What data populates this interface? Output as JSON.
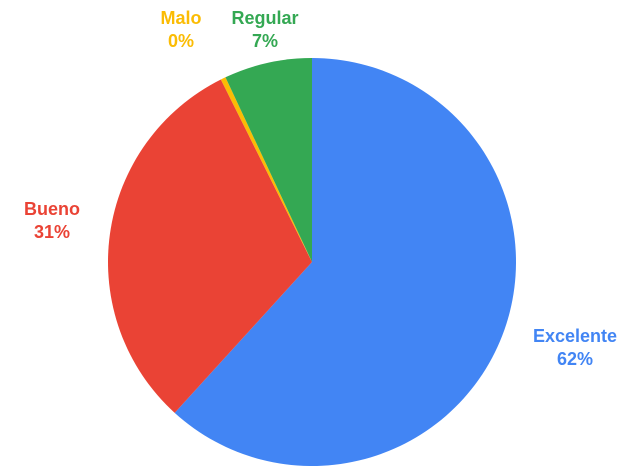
{
  "chart_data": {
    "type": "pie",
    "start_angle_deg": 0,
    "direction": "clockwise",
    "slices": [
      {
        "label": "Excelente",
        "value": 62,
        "percent_label": "62%",
        "color": "#4285f4"
      },
      {
        "label": "Bueno",
        "value": 31,
        "percent_label": "31%",
        "color": "#ea4335"
      },
      {
        "label": "Malo",
        "value": 0.4,
        "percent_label": "0%",
        "color": "#fbbc04"
      },
      {
        "label": "Regular",
        "value": 7,
        "percent_label": "7%",
        "color": "#34a853"
      }
    ]
  }
}
